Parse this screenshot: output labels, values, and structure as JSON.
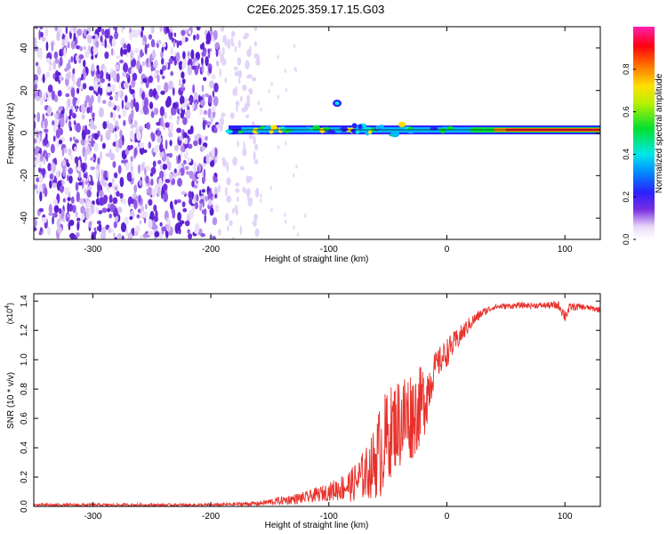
{
  "title": "C2E6.2025.359.17.15.G03",
  "colors": {
    "trace": "#e8302a",
    "axis": "#000000",
    "background": "#ffffff"
  },
  "chart_data": [
    {
      "type": "heatmap",
      "name": "spectrogram",
      "xlabel": "Height of straight line (km)",
      "ylabel": "Frequency (Hz)",
      "xlim": [
        -350,
        130
      ],
      "ylim": [
        -50,
        50
      ],
      "xticks": [
        -300,
        -200,
        -100,
        0,
        100
      ],
      "yticks": [
        -40,
        -20,
        0,
        20,
        40
      ],
      "xtick_labels": [
        "-300",
        "-200",
        "-100",
        "0",
        "100"
      ],
      "ytick_labels": [
        "-40",
        "-20",
        "0",
        "20",
        "40"
      ],
      "noise_region_km": [
        -350,
        -160
      ],
      "signal_line_hz": 1.5,
      "signal_start_km": -185,
      "colorbar": {
        "label": "Normalized spectral amplitude",
        "range": [
          0,
          1
        ],
        "ticks": [
          0,
          0.2,
          0.4,
          0.6,
          0.8
        ],
        "tick_labels": [
          "0.0",
          "0.2",
          "0.4",
          "0.6",
          "0.8"
        ],
        "colormap": "rainbow (white-purple-blue-cyan-green-yellow-red-magenta)"
      }
    },
    {
      "type": "line",
      "name": "snr",
      "xlabel": "Height of straight line (km)",
      "ylabel": "SNR (10 * v/v)",
      "multiplier": "(x10",
      "multiplier_exp": "4",
      "xlim": [
        -350,
        130
      ],
      "ylim": [
        0,
        1.45
      ],
      "xticks": [
        -300,
        -200,
        -100,
        0,
        100
      ],
      "yticks": [
        0,
        0.2,
        0.4,
        0.6,
        0.8,
        1.0,
        1.2,
        1.4
      ],
      "xtick_labels": [
        "-300",
        "-200",
        "-100",
        "0",
        "100"
      ],
      "ytick_labels": [
        "0.0",
        "0.2",
        "0.4",
        "0.6",
        "0.8",
        "1.0",
        "1.2",
        "1.4"
      ],
      "series": [
        {
          "name": "SNR",
          "x": [
            -350,
            -300,
            -250,
            -200,
            -160,
            -140,
            -120,
            -100,
            -80,
            -65,
            -55,
            -45,
            -35,
            -25,
            -18,
            -10,
            0,
            10,
            20,
            30,
            40,
            60,
            80,
            95,
            100,
            105,
            115,
            130
          ],
          "y": [
            0.01,
            0.01,
            0.01,
            0.01,
            0.02,
            0.04,
            0.06,
            0.1,
            0.15,
            0.25,
            0.4,
            0.55,
            0.6,
            0.65,
            0.75,
            0.95,
            1.05,
            1.15,
            1.25,
            1.32,
            1.36,
            1.37,
            1.37,
            1.37,
            1.3,
            1.36,
            1.36,
            1.34
          ],
          "noise": [
            0.01,
            0.01,
            0.01,
            0.01,
            0.015,
            0.03,
            0.04,
            0.06,
            0.12,
            0.2,
            0.35,
            0.3,
            0.35,
            0.28,
            0.25,
            0.1,
            0.1,
            0.07,
            0.05,
            0.03,
            0.02,
            0.02,
            0.02,
            0.03,
            0.05,
            0.03,
            0.02,
            0.02
          ]
        }
      ]
    }
  ]
}
